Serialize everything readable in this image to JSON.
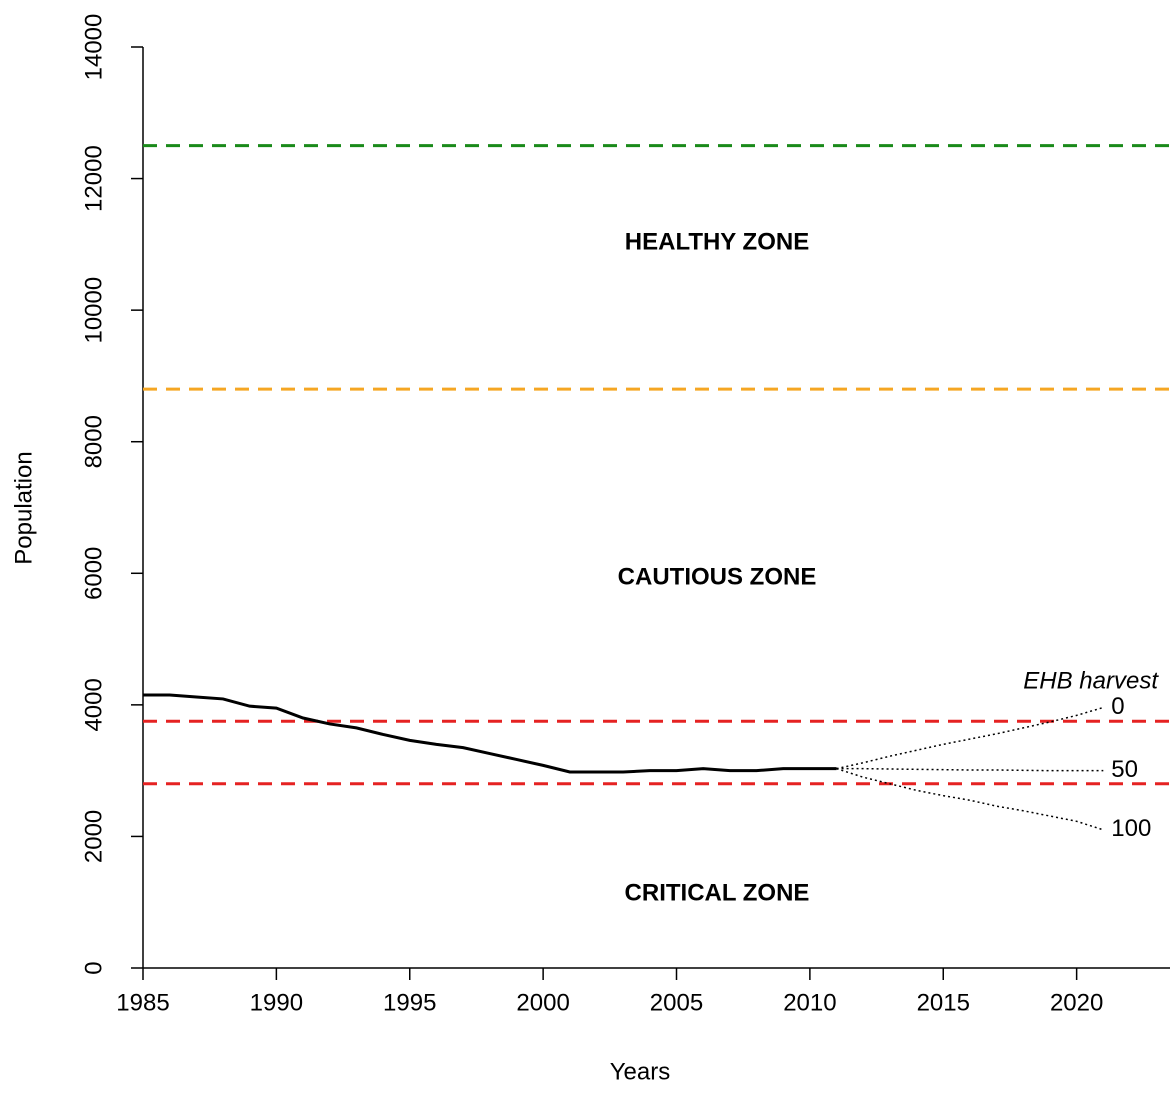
{
  "chart_data": {
    "type": "line",
    "xlabel": "Years",
    "ylabel": "Population",
    "x": [
      1985,
      1986,
      1987,
      1988,
      1989,
      1990,
      1991,
      1992,
      1993,
      1994,
      1995,
      1996,
      1997,
      1998,
      1999,
      2000,
      2001,
      2002,
      2003,
      2004,
      2005,
      2006,
      2007,
      2008,
      2009,
      2010,
      2011
    ],
    "values": [
      4150,
      4150,
      4120,
      4090,
      3980,
      3950,
      3800,
      3710,
      3650,
      3550,
      3460,
      3400,
      3350,
      3260,
      3170,
      3080,
      2980,
      2980,
      2980,
      3000,
      3000,
      3030,
      3000,
      3000,
      3030,
      3030,
      3030
    ],
    "color": "#000000",
    "projection_title": "EHB harvest",
    "projection_x": [
      2011,
      2012,
      2013,
      2014,
      2015,
      2016,
      2017,
      2018,
      2019,
      2020,
      2021
    ],
    "projections": [
      {
        "name": "0",
        "values": [
          3030,
          3120,
          3220,
          3310,
          3400,
          3480,
          3560,
          3650,
          3740,
          3840,
          3960
        ]
      },
      {
        "name": "50",
        "values": [
          3030,
          3030,
          3025,
          3020,
          3015,
          3010,
          3010,
          3005,
          3000,
          3000,
          3000
        ]
      },
      {
        "name": "100",
        "values": [
          3030,
          2900,
          2800,
          2700,
          2620,
          2550,
          2460,
          2390,
          2310,
          2230,
          2100
        ]
      }
    ],
    "hlines": [
      {
        "value": 12500,
        "color": "#1a8a1a"
      },
      {
        "value": 8800,
        "color": "#f5a623"
      },
      {
        "value": 3750,
        "color": "#e52222"
      },
      {
        "value": 2800,
        "color": "#e52222"
      }
    ],
    "zones": [
      "HEALTHY ZONE",
      "CAUTIOUS ZONE",
      "CRITICAL ZONE"
    ],
    "xlim": [
      1985,
      2023.5
    ],
    "ylim": [
      0,
      14000
    ],
    "xticks": [
      1985,
      1990,
      1995,
      2000,
      2005,
      2010,
      2015,
      2020
    ],
    "yticks": [
      0,
      2000,
      4000,
      6000,
      8000,
      10000,
      12000,
      14000
    ]
  }
}
